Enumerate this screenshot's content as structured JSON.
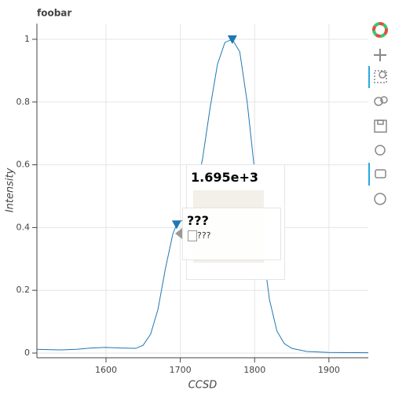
{
  "chart_data": {
    "type": "line",
    "title": "foobar",
    "x_label": "CCSD",
    "y_label": "Intensity",
    "series": [
      {
        "color": "#1f77b4",
        "x": [
          1507,
          1520,
          1540,
          1560,
          1580,
          1600,
          1620,
          1640,
          1650,
          1660,
          1670,
          1680,
          1690,
          1695,
          1700,
          1710,
          1720,
          1730,
          1740,
          1750,
          1760,
          1770,
          1780,
          1790,
          1800,
          1810,
          1820,
          1830,
          1840,
          1850,
          1870,
          1900,
          1953
        ],
        "values": [
          0.012,
          0.011,
          0.01,
          0.012,
          0.016,
          0.018,
          0.016,
          0.015,
          0.025,
          0.06,
          0.14,
          0.27,
          0.38,
          0.41,
          0.42,
          0.43,
          0.5,
          0.62,
          0.78,
          0.92,
          0.99,
          1.0,
          0.96,
          0.8,
          0.58,
          0.35,
          0.17,
          0.07,
          0.03,
          0.015,
          0.005,
          0.002,
          0.001
        ]
      },
      {
        "color": "#1f77b4",
        "marker": "triangle-down",
        "x": [
          1695,
          1770
        ],
        "values": [
          0.41,
          1.0
        ]
      }
    ],
    "xlim": [
      1507,
      1953
    ],
    "ylim": [
      -0.015,
      1.05
    ],
    "xticks": [
      1600,
      1700,
      1800,
      1900
    ],
    "yticks": [
      0,
      0.2,
      0.4,
      0.6,
      0.8,
      1
    ],
    "grid": true,
    "tooltips": [
      {
        "text": "1.695e+3"
      },
      {
        "text": "???",
        "alt": "???"
      }
    ]
  }
}
